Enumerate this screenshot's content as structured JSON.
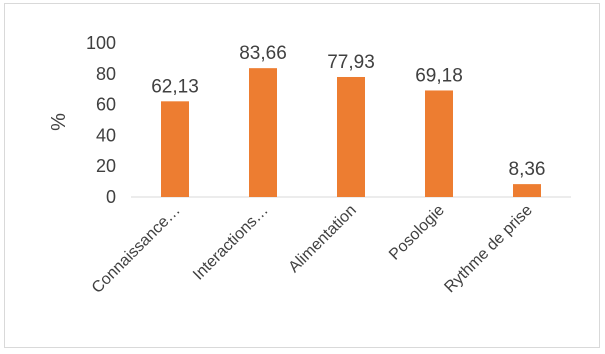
{
  "chart_data": {
    "type": "bar",
    "title": "",
    "xlabel": "",
    "ylabel": "%",
    "ylim": [
      0,
      100
    ],
    "yticks": [
      "0",
      "20",
      "40",
      "60",
      "80",
      "100"
    ],
    "grid": false,
    "legend": "none",
    "categories": [
      "Connaissance…",
      "Interactions…",
      "Alimentation",
      "Posologie",
      "Rythme de prise"
    ],
    "values": [
      62.13,
      83.66,
      77.93,
      69.18,
      8.36
    ],
    "value_labels": [
      "62,13",
      "83,66",
      "77,93",
      "69,18",
      "8,36"
    ],
    "bar_color": "#ed7d31",
    "axis_color": "#d9d9d9"
  }
}
